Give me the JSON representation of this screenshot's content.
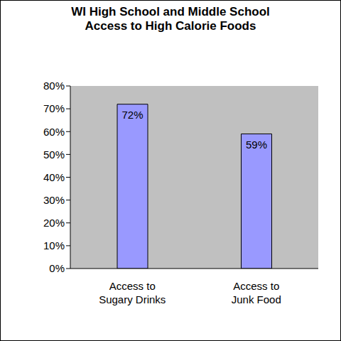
{
  "chart_data": {
    "type": "bar",
    "title": "WI High School and Middle School Access to High Calorie Foods",
    "categories": [
      "Access to Sugary Drinks",
      "Access to Junk Food"
    ],
    "values": [
      72,
      59
    ],
    "value_labels": [
      "72%",
      "59%"
    ],
    "data_labels": true,
    "color": "#9999ff",
    "ylim": [
      0,
      80
    ],
    "yticks": [
      {
        "value": 0,
        "label": "0%"
      },
      {
        "value": 10,
        "label": "10%"
      },
      {
        "value": 20,
        "label": "20%"
      },
      {
        "value": 30,
        "label": "30%"
      },
      {
        "value": 40,
        "label": "40%"
      },
      {
        "value": 50,
        "label": "50%"
      },
      {
        "value": 60,
        "label": "60%"
      },
      {
        "value": 70,
        "label": "70%"
      },
      {
        "value": 80,
        "label": "80%"
      }
    ],
    "grid": false
  }
}
